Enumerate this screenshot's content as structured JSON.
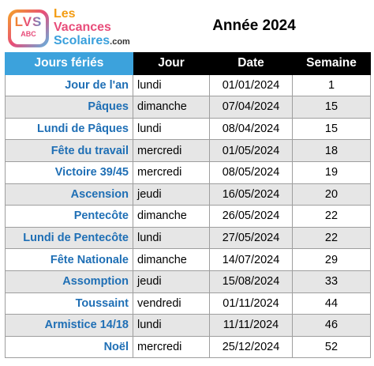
{
  "logo": {
    "badge_text": "LVS",
    "badge_sub": "ABC",
    "line1": "Les",
    "line2": "Vacances",
    "line3": "Scolaires",
    "line3_suffix": ".com"
  },
  "title": "Année 2024",
  "table": {
    "headers": [
      "Jours fériés",
      "Jour",
      "Date",
      "Semaine"
    ],
    "rows": [
      {
        "name": "Jour de l'an",
        "jour": "lundi",
        "date": "01/01/2024",
        "semaine": "1"
      },
      {
        "name": "Pâques",
        "jour": "dimanche",
        "date": "07/04/2024",
        "semaine": "15"
      },
      {
        "name": "Lundi de Pâques",
        "jour": "lundi",
        "date": "08/04/2024",
        "semaine": "15"
      },
      {
        "name": "Fête du travail",
        "jour": "mercredi",
        "date": "01/05/2024",
        "semaine": "18"
      },
      {
        "name": "Victoire 39/45",
        "jour": "mercredi",
        "date": "08/05/2024",
        "semaine": "19"
      },
      {
        "name": "Ascension",
        "jour": "jeudi",
        "date": "16/05/2024",
        "semaine": "20"
      },
      {
        "name": "Pentecôte",
        "jour": "dimanche",
        "date": "26/05/2024",
        "semaine": "22"
      },
      {
        "name": "Lundi de Pentecôte",
        "jour": "lundi",
        "date": "27/05/2024",
        "semaine": "22"
      },
      {
        "name": "Fête Nationale",
        "jour": "dimanche",
        "date": "14/07/2024",
        "semaine": "29"
      },
      {
        "name": "Assomption",
        "jour": "jeudi",
        "date": "15/08/2024",
        "semaine": "33"
      },
      {
        "name": "Toussaint",
        "jour": "vendredi",
        "date": "01/11/2024",
        "semaine": "44"
      },
      {
        "name": "Armistice 14/18",
        "jour": "lundi",
        "date": "11/11/2024",
        "semaine": "46"
      },
      {
        "name": "Noël",
        "jour": "mercredi",
        "date": "25/12/2024",
        "semaine": "52"
      }
    ]
  },
  "colors": {
    "header_accent": "#3ca2dc",
    "header_dark": "#000000",
    "holiday_name": "#1f6fb5",
    "alt_row": "#e6e6e6"
  }
}
